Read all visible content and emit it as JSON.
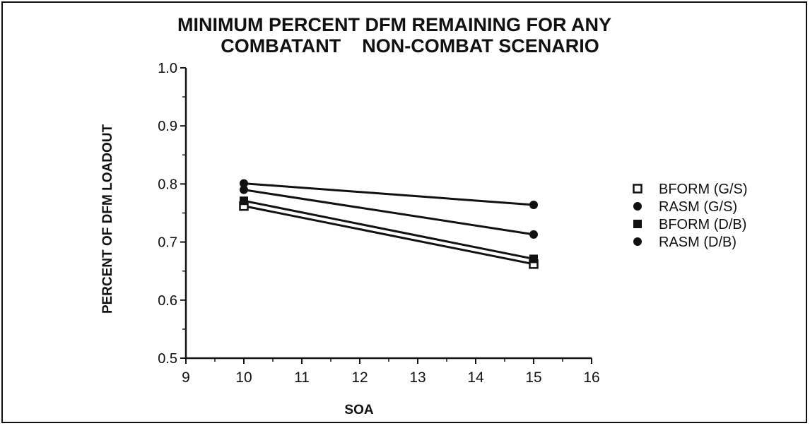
{
  "chart_data": {
    "type": "line",
    "title_line1": "MINIMUM PERCENT DFM REMAINING FOR ANY",
    "title_line2": "COMBATANT    NON-COMBAT SCENARIO",
    "xlabel": "SOA",
    "ylabel": "PERCENT OF DFM LOADOUT",
    "xlim": [
      9,
      16
    ],
    "ylim": [
      0.5,
      1.0
    ],
    "xticks": [
      "9",
      "10",
      "11",
      "12",
      "13",
      "14",
      "15",
      "16"
    ],
    "yticks": [
      "0.5",
      "0.6",
      "0.7",
      "0.8",
      "0.9",
      "1.0"
    ],
    "grid": false,
    "legend_position": "right",
    "series": [
      {
        "name": "BFORM (G/S)",
        "marker": "open-square",
        "x": [
          10,
          15
        ],
        "y": [
          0.762,
          0.662
        ]
      },
      {
        "name": "RASM (G/S)",
        "marker": "filled-circle",
        "x": [
          10,
          15
        ],
        "y": [
          0.79,
          0.713
        ]
      },
      {
        "name": "BFORM (D/B)",
        "marker": "filled-square",
        "x": [
          10,
          15
        ],
        "y": [
          0.771,
          0.671
        ]
      },
      {
        "name": "RASM (D/B)",
        "marker": "filled-circle",
        "x": [
          10,
          15
        ],
        "y": [
          0.801,
          0.764
        ]
      }
    ],
    "colors": {
      "ink": "#111111",
      "background": "#ffffff"
    }
  }
}
